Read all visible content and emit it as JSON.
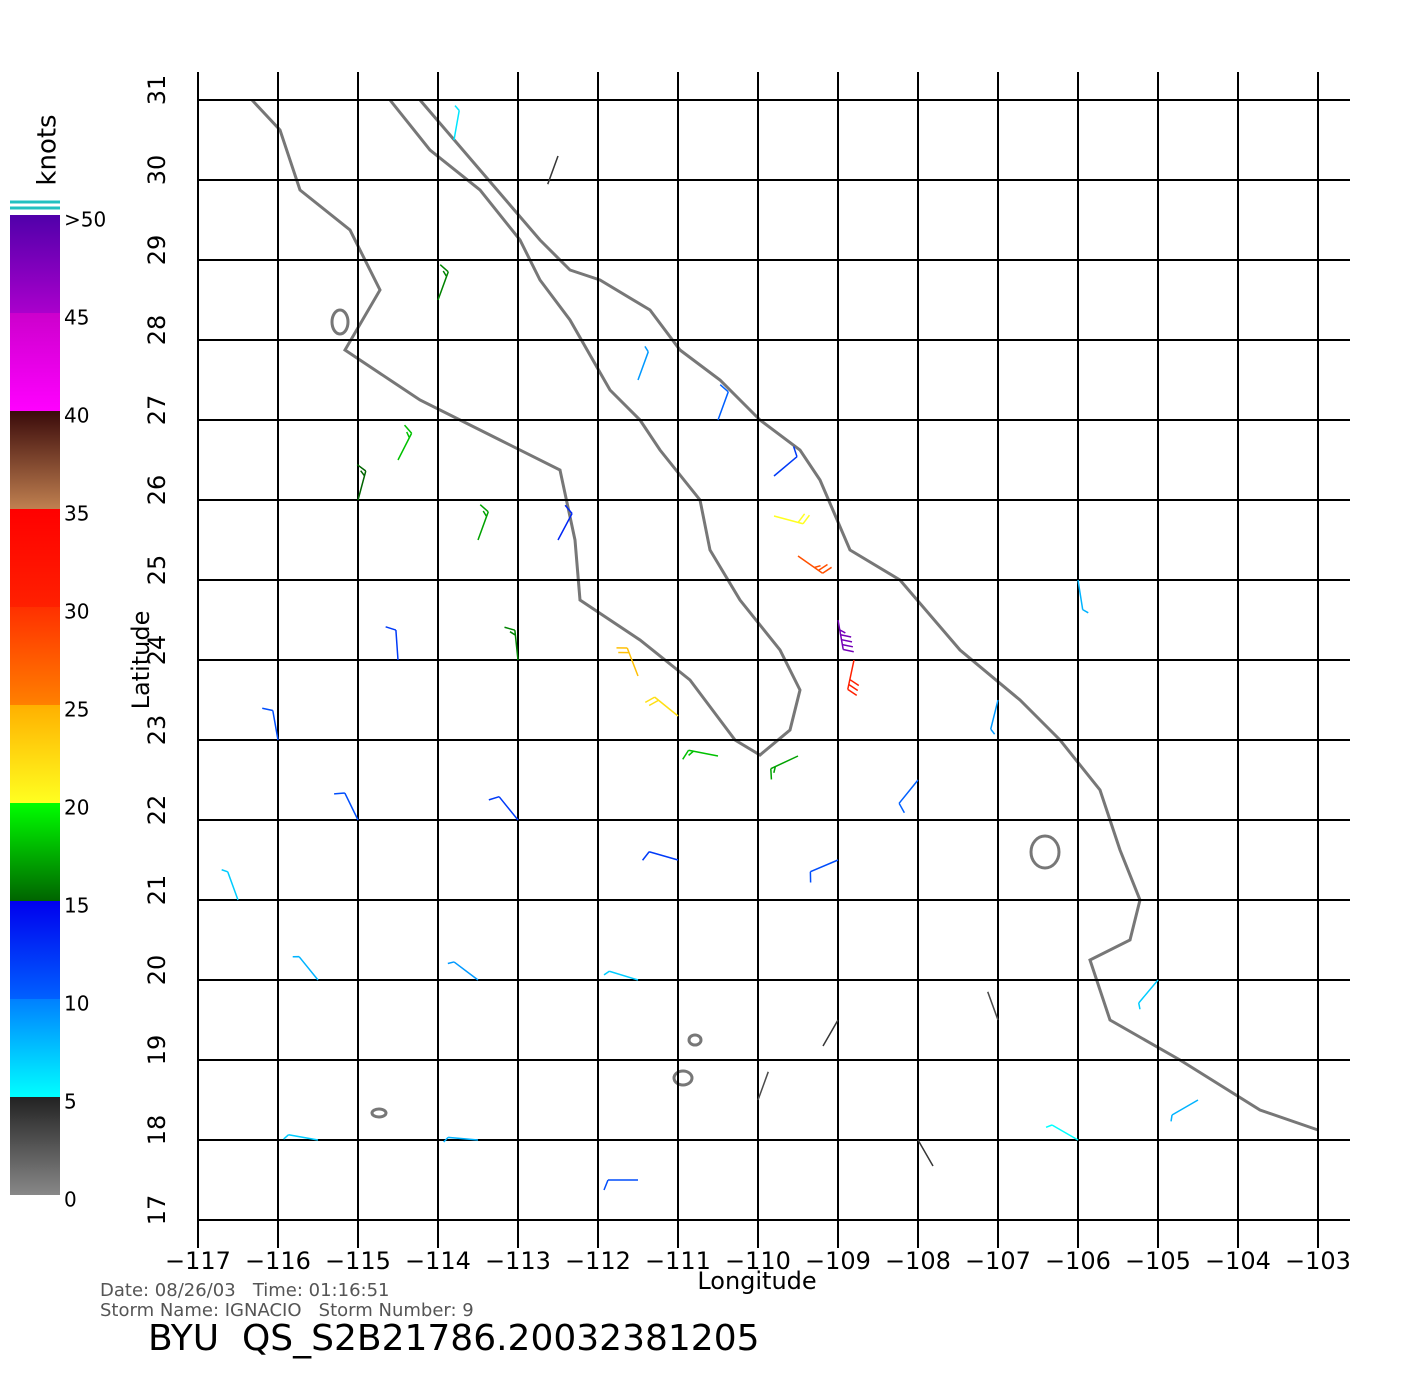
{
  "chart_data": {
    "type": "wind-barbs",
    "x_label": "Longitude",
    "y_label": "Latitude",
    "xlim": [
      -117,
      -103
    ],
    "xticks": [
      {
        "value": -117,
        "label": "−117"
      },
      {
        "value": -116,
        "label": "−116"
      },
      {
        "value": -115,
        "label": "−115"
      },
      {
        "value": -114,
        "label": "−114"
      },
      {
        "value": -113,
        "label": "−113"
      },
      {
        "value": -112,
        "label": "−112"
      },
      {
        "value": -111,
        "label": "−111"
      },
      {
        "value": -110,
        "label": "−110"
      },
      {
        "value": -109,
        "label": "−109"
      },
      {
        "value": -108,
        "label": "−108"
      },
      {
        "value": -107,
        "label": "−107"
      },
      {
        "value": -106,
        "label": "−106"
      },
      {
        "value": -105,
        "label": "−105"
      },
      {
        "value": -104,
        "label": "−104"
      },
      {
        "value": -103,
        "label": "−103"
      }
    ],
    "ylim": [
      17,
      31
    ],
    "yticks": [
      17,
      18,
      19,
      20,
      21,
      22,
      23,
      24,
      25,
      26,
      27,
      28,
      29,
      30,
      31
    ],
    "grid": true,
    "x": [
      -114.5,
      -113.5,
      -112.5,
      -114.5,
      -113,
      -111.5,
      -111,
      -110.5,
      -109.5,
      -109,
      -108.8,
      -109.5,
      -109.8,
      -115,
      -113,
      -111,
      -109,
      -108,
      -107,
      -106,
      -115.5,
      -113.5,
      -111.5,
      -109,
      -107,
      -105,
      -104.5,
      -115.5,
      -113.5,
      -111.5,
      -110,
      -108,
      -106,
      -114,
      -113.8,
      -112.5,
      -111.5,
      -110.5,
      -109.8,
      -115,
      -116,
      -116.5
    ],
    "y": [
      26.5,
      25.5,
      25.5,
      24,
      24,
      23.8,
      23.3,
      22.8,
      22.8,
      24.5,
      24,
      25.3,
      25.8,
      22,
      22,
      21.5,
      21.5,
      22.5,
      23.5,
      25,
      20,
      20,
      20,
      19.5,
      19.5,
      20,
      18.5,
      18,
      18,
      17.5,
      18.5,
      18,
      18,
      28.5,
      30.5,
      30.3,
      27.5,
      27,
      26.3,
      26,
      23,
      21
    ],
    "speed": [
      18,
      17,
      13,
      12,
      16,
      24,
      22,
      18,
      17,
      48,
      30,
      28,
      20,
      11,
      12,
      12,
      11,
      10,
      9,
      8,
      8,
      9,
      7,
      4,
      3,
      7,
      8,
      7,
      8,
      11,
      3,
      4,
      5,
      16,
      6,
      4,
      9,
      10,
      12,
      15,
      11,
      7
    ],
    "direction": [
      207,
      200,
      208,
      176,
      174,
      159,
      129,
      101,
      65,
      350,
      12,
      305,
      285,
      154,
      141,
      106,
      67,
      39,
      14,
      351,
      141,
      127,
      107,
      30,
      160,
      40,
      60,
      100,
      95,
      90,
      200,
      330,
      120,
      200,
      190,
      20,
      200,
      200,
      230,
      195,
      170,
      160
    ],
    "colorbar": {
      "label": "knots",
      "range": [
        0,
        50
      ],
      "ticks": [
        0,
        5,
        10,
        15,
        20,
        25,
        30,
        35,
        40,
        45,
        {
          "value": 50,
          "label": ">50"
        }
      ],
      "bands": [
        {
          "from": 0,
          "to": 5,
          "colors": [
            "#888888",
            "#222222"
          ]
        },
        {
          "from": 5,
          "to": 10,
          "colors": [
            "#00ffff",
            "#0080ff"
          ]
        },
        {
          "from": 10,
          "to": 15,
          "colors": [
            "#0060ff",
            "#0000ee"
          ]
        },
        {
          "from": 15,
          "to": 20,
          "colors": [
            "#006400",
            "#00ff00"
          ]
        },
        {
          "from": 20,
          "to": 25,
          "colors": [
            "#ffff20",
            "#ffb000"
          ]
        },
        {
          "from": 25,
          "to": 30,
          "colors": [
            "#ff8000",
            "#ff3000"
          ]
        },
        {
          "from": 30,
          "to": 35,
          "colors": [
            "#ff2000",
            "#ff0000"
          ]
        },
        {
          "from": 35,
          "to": 40,
          "colors": [
            "#c08050",
            "#3a0a0a"
          ]
        },
        {
          "from": 40,
          "to": 45,
          "colors": [
            "#ff00ff",
            "#cc00cc"
          ]
        },
        {
          "from": 45,
          "to": 50,
          "colors": [
            "#aa00cc",
            "#5000aa"
          ]
        }
      ]
    },
    "footer": {
      "line1": "Date: 08/26/03   Time: 01:16:51",
      "line2": "Storm Name: IGNACIO   Storm Number: 9",
      "id": "BYU  QS_S2B21786.20032381205"
    }
  }
}
